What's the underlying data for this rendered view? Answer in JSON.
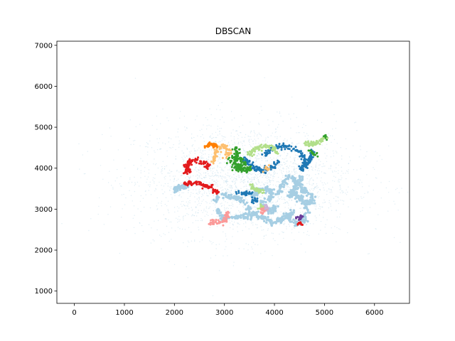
{
  "chart_data": {
    "type": "scatter",
    "title": "DBSCAN",
    "xlabel": "",
    "ylabel": "",
    "xlim": [
      -350,
      6700
    ],
    "ylim": [
      700,
      7100
    ],
    "xticks": [
      0,
      1000,
      2000,
      3000,
      4000,
      5000,
      6000
    ],
    "yticks": [
      1000,
      2000,
      3000,
      4000,
      5000,
      6000,
      7000
    ],
    "grid": false,
    "legend": "none",
    "noise": {
      "color": "#a6cee3",
      "center": [
        3400,
        3700
      ],
      "spread": [
        1100,
        700
      ],
      "count": 2600
    },
    "series": [
      {
        "color": "#a6cee3",
        "size": 3.4,
        "count": 130,
        "points": [
          [
            2800,
            3200
          ],
          [
            2950,
            3350
          ],
          [
            3250,
            3280
          ],
          [
            3450,
            3150
          ],
          [
            3500,
            2950
          ],
          [
            3450,
            2820
          ],
          [
            3250,
            2780
          ],
          [
            3000,
            2800
          ],
          [
            2880,
            2900
          ],
          [
            2850,
            3050
          ]
        ]
      },
      {
        "color": "#a6cee3",
        "size": 3.4,
        "count": 120,
        "points": [
          [
            3500,
            2750
          ],
          [
            3600,
            2900
          ],
          [
            3750,
            2800
          ],
          [
            3900,
            2700
          ],
          [
            4050,
            2700
          ],
          [
            4200,
            2780
          ],
          [
            4320,
            2880
          ],
          [
            4400,
            2950
          ]
        ]
      },
      {
        "color": "#a6cee3",
        "size": 3.4,
        "count": 130,
        "points": [
          [
            3550,
            3300
          ],
          [
            3700,
            3450
          ],
          [
            3850,
            3500
          ],
          [
            3950,
            3400
          ],
          [
            3900,
            3250
          ],
          [
            3750,
            3150
          ],
          [
            3800,
            3000
          ],
          [
            3950,
            2950
          ],
          [
            4050,
            3050
          ]
        ]
      },
      {
        "color": "#a6cee3",
        "size": 3.4,
        "count": 120,
        "points": [
          [
            4050,
            3350
          ],
          [
            4150,
            3600
          ],
          [
            4250,
            3750
          ],
          [
            4350,
            3800
          ],
          [
            4450,
            3650
          ],
          [
            4400,
            3450
          ],
          [
            4300,
            3300
          ]
        ]
      },
      {
        "color": "#a6cee3",
        "size": 3.4,
        "count": 120,
        "points": [
          [
            4250,
            2900
          ],
          [
            4300,
            2750
          ],
          [
            4450,
            2650
          ],
          [
            4600,
            2750
          ],
          [
            4650,
            2950
          ],
          [
            4600,
            3150
          ],
          [
            4450,
            3300
          ],
          [
            4350,
            3450
          ]
        ]
      },
      {
        "color": "#a6cee3",
        "size": 3.4,
        "count": 100,
        "points": [
          [
            4400,
            3300
          ],
          [
            4550,
            3250
          ],
          [
            4700,
            3150
          ],
          [
            4780,
            3250
          ],
          [
            4700,
            3400
          ],
          [
            4550,
            3450
          ],
          [
            4500,
            3650
          ],
          [
            4550,
            3800
          ]
        ]
      },
      {
        "color": "#a6cee3",
        "size": 3.4,
        "count": 40,
        "points": [
          [
            1980,
            3450
          ],
          [
            2080,
            3520
          ],
          [
            2180,
            3560
          ],
          [
            2260,
            3560
          ]
        ]
      },
      {
        "color": "#1f78b4",
        "size": 3.0,
        "count": 110,
        "points": [
          [
            3380,
            4250
          ],
          [
            3500,
            4080
          ],
          [
            3650,
            3980
          ],
          [
            3800,
            3960
          ],
          [
            3950,
            4020
          ],
          [
            4080,
            4150
          ]
        ]
      },
      {
        "color": "#1f78b4",
        "size": 3.0,
        "count": 110,
        "points": [
          [
            3800,
            4350
          ],
          [
            3950,
            4480
          ],
          [
            4150,
            4540
          ],
          [
            4350,
            4500
          ],
          [
            4500,
            4400
          ],
          [
            4600,
            4250
          ],
          [
            4600,
            4080
          ],
          [
            4500,
            3950
          ]
        ]
      },
      {
        "color": "#1f78b4",
        "size": 3.0,
        "count": 70,
        "points": [
          [
            4750,
            4400
          ],
          [
            4720,
            4250
          ],
          [
            4650,
            4100
          ],
          [
            4540,
            3950
          ]
        ]
      },
      {
        "color": "#1f78b4",
        "size": 3.0,
        "count": 40,
        "points": [
          [
            3280,
            3400
          ],
          [
            3380,
            3400
          ],
          [
            3480,
            3380
          ],
          [
            3560,
            3330
          ]
        ]
      },
      {
        "color": "#1f78b4",
        "size": 3.0,
        "count": 20,
        "points": [
          [
            3550,
            3200
          ],
          [
            3620,
            3230
          ],
          [
            3660,
            3190
          ]
        ]
      },
      {
        "color": "#33a02c",
        "size": 3.0,
        "count": 100,
        "points": [
          [
            3050,
            4180
          ],
          [
            3200,
            4270
          ],
          [
            3350,
            4200
          ],
          [
            3420,
            4120
          ],
          [
            3300,
            4000
          ],
          [
            3200,
            3980
          ],
          [
            3180,
            4100
          ],
          [
            3250,
            4300
          ],
          [
            3300,
            4450
          ],
          [
            3250,
            4500
          ],
          [
            3150,
            4420
          ]
        ]
      },
      {
        "color": "#33a02c",
        "size": 3.0,
        "count": 60,
        "points": [
          [
            3280,
            4100
          ],
          [
            3330,
            3980
          ],
          [
            3430,
            3930
          ],
          [
            3480,
            4050
          ]
        ]
      },
      {
        "color": "#33a02c",
        "size": 3.0,
        "count": 18,
        "points": [
          [
            4700,
            4420
          ],
          [
            4760,
            4380
          ],
          [
            4820,
            4330
          ]
        ]
      },
      {
        "color": "#33a02c",
        "size": 3.0,
        "count": 14,
        "points": [
          [
            4950,
            4740
          ],
          [
            5020,
            4780
          ],
          [
            5040,
            4700
          ]
        ]
      },
      {
        "color": "#b2df8a",
        "size": 3.0,
        "count": 80,
        "points": [
          [
            3500,
            4320
          ],
          [
            3650,
            4500
          ],
          [
            3850,
            4540
          ],
          [
            4000,
            4470
          ],
          [
            4100,
            4350
          ]
        ]
      },
      {
        "color": "#b2df8a",
        "size": 3.0,
        "count": 60,
        "points": [
          [
            4600,
            4620
          ],
          [
            4750,
            4580
          ],
          [
            4880,
            4640
          ],
          [
            5000,
            4720
          ]
        ]
      },
      {
        "color": "#b2df8a",
        "size": 3.0,
        "count": 40,
        "points": [
          [
            3500,
            3600
          ],
          [
            3580,
            3520
          ],
          [
            3700,
            3450
          ],
          [
            3780,
            3420
          ]
        ]
      },
      {
        "color": "#b2df8a",
        "size": 3.0,
        "count": 20,
        "points": [
          [
            3700,
            3000
          ],
          [
            3760,
            3060
          ],
          [
            3820,
            3020
          ]
        ]
      },
      {
        "color": "#fdbf6f",
        "size": 3.0,
        "count": 90,
        "points": [
          [
            2780,
            4150
          ],
          [
            2830,
            4400
          ],
          [
            2950,
            4550
          ],
          [
            3050,
            4500
          ],
          [
            3100,
            4380
          ],
          [
            3000,
            4250
          ]
        ]
      },
      {
        "color": "#fdbf6f",
        "size": 3.0,
        "count": 12,
        "points": [
          [
            3800,
            3950
          ],
          [
            3840,
            3990
          ],
          [
            3880,
            4010
          ]
        ]
      },
      {
        "color": "#ff7f00",
        "size": 3.0,
        "count": 40,
        "points": [
          [
            2600,
            4480
          ],
          [
            2680,
            4590
          ],
          [
            2780,
            4590
          ],
          [
            2850,
            4520
          ]
        ]
      },
      {
        "color": "#e31a1c",
        "size": 3.0,
        "count": 90,
        "points": [
          [
            2230,
            3880
          ],
          [
            2250,
            4080
          ],
          [
            2340,
            4180
          ],
          [
            2480,
            4200
          ],
          [
            2600,
            4130
          ],
          [
            2680,
            4000
          ]
        ]
      },
      {
        "color": "#e31a1c",
        "size": 3.0,
        "count": 90,
        "points": [
          [
            2180,
            3610
          ],
          [
            2350,
            3630
          ],
          [
            2500,
            3620
          ],
          [
            2650,
            3570
          ],
          [
            2800,
            3480
          ],
          [
            2880,
            3390
          ]
        ]
      },
      {
        "color": "#e31a1c",
        "size": 3.0,
        "count": 12,
        "points": [
          [
            2260,
            3930
          ],
          [
            2300,
            3960
          ],
          [
            2330,
            3920
          ]
        ]
      },
      {
        "color": "#fb9a99",
        "size": 3.0,
        "count": 60,
        "points": [
          [
            2700,
            2680
          ],
          [
            2850,
            2670
          ],
          [
            2980,
            2720
          ],
          [
            3060,
            2820
          ],
          [
            3050,
            2920
          ]
        ]
      },
      {
        "color": "#fb9a99",
        "size": 3.0,
        "count": 20,
        "points": [
          [
            3740,
            2990
          ],
          [
            3800,
            2960
          ],
          [
            3870,
            2990
          ]
        ]
      },
      {
        "color": "#6a3d9a",
        "size": 3.0,
        "count": 16,
        "points": [
          [
            4440,
            2780
          ],
          [
            4500,
            2810
          ],
          [
            4560,
            2790
          ]
        ]
      },
      {
        "color": "#cab2d6",
        "size": 3.0,
        "count": 12,
        "points": [
          [
            3800,
            3060
          ],
          [
            3850,
            3020
          ],
          [
            3880,
            3060
          ]
        ]
      },
      {
        "color": "#e31a1c",
        "size": 3.0,
        "count": 10,
        "points": [
          [
            4460,
            2640
          ],
          [
            4520,
            2640
          ],
          [
            4560,
            2630
          ]
        ]
      }
    ]
  }
}
